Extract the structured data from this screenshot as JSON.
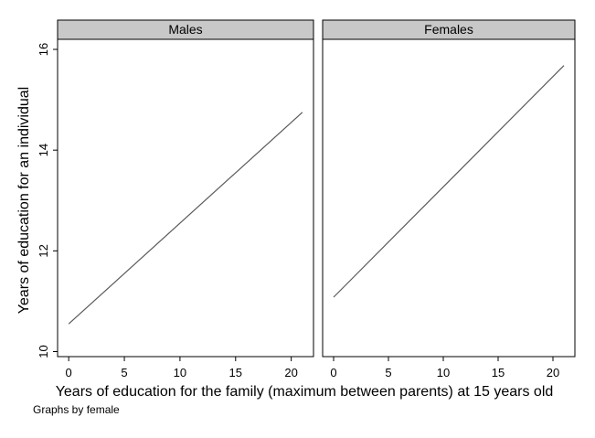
{
  "chart_data": {
    "type": "line",
    "layout": "faceted",
    "ylabel": "Years of education for an individual",
    "xlabel": "Years of education for the family (maximum between parents) at 15 years old",
    "note": "Graphs by female",
    "xlim": [
      -1,
      22
    ],
    "ylim": [
      9.9,
      16.2
    ],
    "xticks": [
      0,
      5,
      10,
      15,
      20
    ],
    "yticks": [
      10,
      12,
      14,
      16
    ],
    "grid": false,
    "colors": {
      "line": "#5a5a5a",
      "strip": "#c8c8c8",
      "frame": "#000000",
      "background": "#ffffff"
    },
    "panels": [
      {
        "title": "Males",
        "x": [
          0,
          21
        ],
        "y": [
          10.55,
          14.75
        ]
      },
      {
        "title": "Females",
        "x": [
          0,
          21
        ],
        "y": [
          11.08,
          15.68
        ]
      }
    ]
  }
}
